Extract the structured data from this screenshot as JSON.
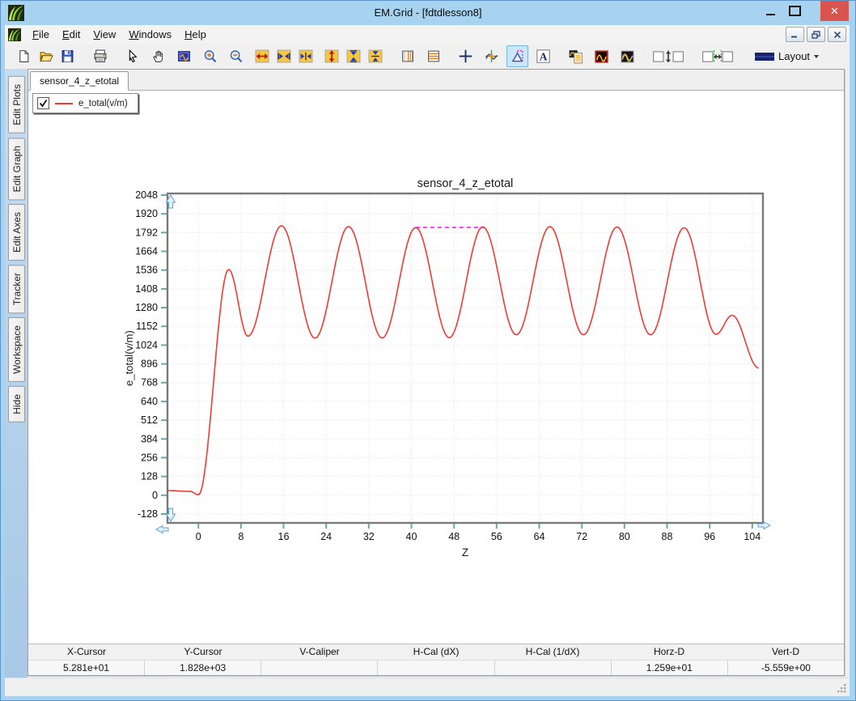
{
  "window": {
    "title": "EM.Grid - [fdtdlesson8]"
  },
  "menubar": {
    "items": [
      "File",
      "Edit",
      "View",
      "Windows",
      "Help"
    ]
  },
  "toolbar": {
    "layout_label": "Layout",
    "active_tool": "caliper",
    "icons": [
      "new-document",
      "open-file",
      "save",
      "print",
      "pointer-tool",
      "pan-tool",
      "zoom-region",
      "zoom-in",
      "zoom-out",
      "expand-x",
      "arrows-out-x",
      "compress-x",
      "expand-y",
      "arrows-out-y",
      "compress-y",
      "vertical-markers",
      "horizontal-markers",
      "crosshair",
      "tracker",
      "caliper",
      "text-label",
      "plot-report",
      "plot-style-dark-red",
      "plot-style-dark",
      "space-vertical",
      "space-horizontal",
      "layout-dropdown"
    ]
  },
  "sidebar": {
    "items": [
      {
        "label": "Edit Plots"
      },
      {
        "label": "Edit Graph"
      },
      {
        "label": "Edit Axes"
      },
      {
        "label": "Tracker"
      },
      {
        "label": "Workspace"
      },
      {
        "label": "Hide"
      }
    ]
  },
  "document": {
    "tab_label": "sensor_4_z_etotal"
  },
  "legend": {
    "label": "e_total(v/m)",
    "checked": true
  },
  "status_table": {
    "columns": [
      {
        "label": "X-Cursor",
        "value": "5.281e+01"
      },
      {
        "label": "Y-Cursor",
        "value": "1.828e+03"
      },
      {
        "label": "V-Caliper",
        "value": ""
      },
      {
        "label": "H-Cal (dX)",
        "value": ""
      },
      {
        "label": "H-Cal (1/dX)",
        "value": ""
      },
      {
        "label": "Horz-D",
        "value": "1.259e+01"
      },
      {
        "label": "Vert-D",
        "value": "-5.559e+00"
      }
    ]
  },
  "chart_data": {
    "type": "line",
    "title": "sensor_4_z_etotal",
    "xlabel": "Z",
    "ylabel": "e_total(v/m)",
    "x_ticks": [
      0,
      8,
      16,
      24,
      32,
      40,
      48,
      56,
      64,
      72,
      80,
      88,
      96,
      104
    ],
    "y_ticks": [
      2048,
      1920,
      1792,
      1664,
      1536,
      1408,
      1280,
      1152,
      1024,
      896,
      768,
      640,
      512,
      384,
      256,
      128,
      0,
      -128
    ],
    "x_range": [
      -5.8,
      106.0
    ],
    "y_range": [
      -189,
      2059
    ],
    "grid": true,
    "grid_color": "#e3e3e3",
    "tick_color": "#62aab2",
    "frame_color": "#7a7a7a",
    "legend_position": "top-left-floating",
    "interpolation": "cosine",
    "series": [
      {
        "name": "e_total(v/m)",
        "color": "#ee3b36",
        "keypoints": [
          [
            -5.8,
            32
          ],
          [
            -1.5,
            26
          ],
          [
            0,
            3
          ],
          [
            5.7,
            1540
          ],
          [
            9.3,
            1085
          ],
          [
            15.6,
            1838
          ],
          [
            21.9,
            1072
          ],
          [
            28.2,
            1833
          ],
          [
            34.5,
            1073
          ],
          [
            40.8,
            1826
          ],
          [
            47.1,
            1075
          ],
          [
            53.4,
            1831
          ],
          [
            59.7,
            1095
          ],
          [
            66.0,
            1833
          ],
          [
            72.3,
            1095
          ],
          [
            78.6,
            1830
          ],
          [
            84.9,
            1095
          ],
          [
            91.2,
            1825
          ],
          [
            97.2,
            1098
          ],
          [
            100.2,
            1228
          ],
          [
            105.2,
            868
          ]
        ]
      }
    ],
    "caliper": {
      "color": "#ff00ff",
      "style": "dashed",
      "y": 1827,
      "x1": 40.8,
      "x2": 53.6
    }
  },
  "colors": {
    "titlebar": "#a7d2f0",
    "close_button": "#d9534f",
    "toolbar_active_bg": "#cde6f8",
    "pan_arrow_blue": "#58a0d8"
  }
}
